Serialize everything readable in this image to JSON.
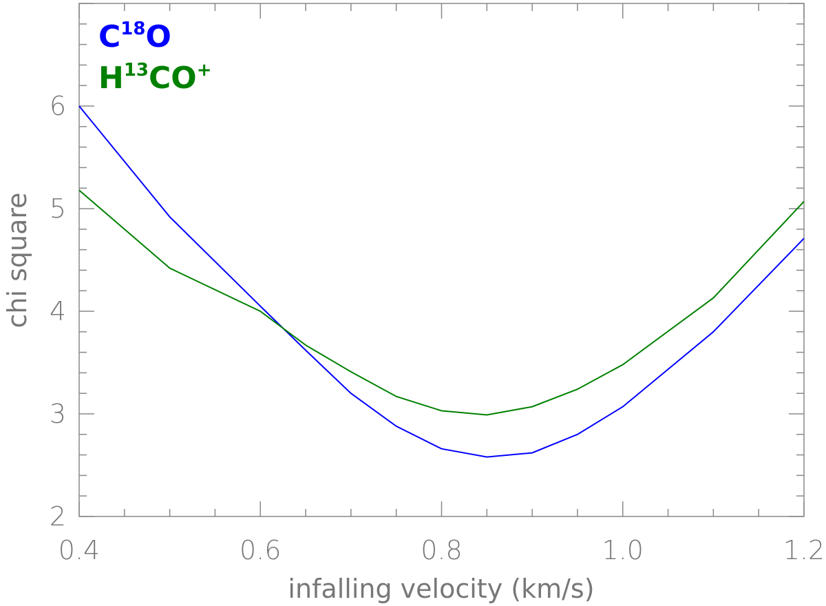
{
  "chart_data": {
    "type": "line",
    "xlabel": "infalling velocity (km/s)",
    "ylabel": "chi square",
    "xlim": [
      0.4,
      1.2
    ],
    "ylim": [
      2,
      7
    ],
    "x_ticks": [
      "0.4",
      "0.6",
      "0.8",
      "1.0",
      "1.2"
    ],
    "y_ticks": [
      "2",
      "3",
      "4",
      "5",
      "6"
    ],
    "grid": false,
    "legend_position": "top-left",
    "series": [
      {
        "name": "C18O",
        "legend": {
          "base": "C",
          "sup": "18",
          "rest": "O"
        },
        "color": "#0000ff",
        "points": [
          [
            0.4,
            6.0
          ],
          [
            0.5,
            4.92
          ],
          [
            0.6,
            4.05
          ],
          [
            0.65,
            3.62
          ],
          [
            0.7,
            3.2
          ],
          [
            0.75,
            2.88
          ],
          [
            0.8,
            2.66
          ],
          [
            0.85,
            2.58
          ],
          [
            0.9,
            2.62
          ],
          [
            0.95,
            2.8
          ],
          [
            1.0,
            3.07
          ],
          [
            1.1,
            3.8
          ],
          [
            1.2,
            4.71
          ]
        ]
      },
      {
        "name": "H13CO+",
        "legend": {
          "base": "H",
          "sup": "13",
          "rest": "CO",
          "sup2": "+"
        },
        "color": "#008000",
        "points": [
          [
            0.4,
            5.18
          ],
          [
            0.5,
            4.42
          ],
          [
            0.6,
            4.0
          ],
          [
            0.65,
            3.67
          ],
          [
            0.7,
            3.41
          ],
          [
            0.75,
            3.17
          ],
          [
            0.8,
            3.03
          ],
          [
            0.85,
            2.99
          ],
          [
            0.9,
            3.07
          ],
          [
            0.95,
            3.24
          ],
          [
            1.0,
            3.48
          ],
          [
            1.1,
            4.13
          ],
          [
            1.2,
            5.07
          ]
        ]
      }
    ]
  }
}
